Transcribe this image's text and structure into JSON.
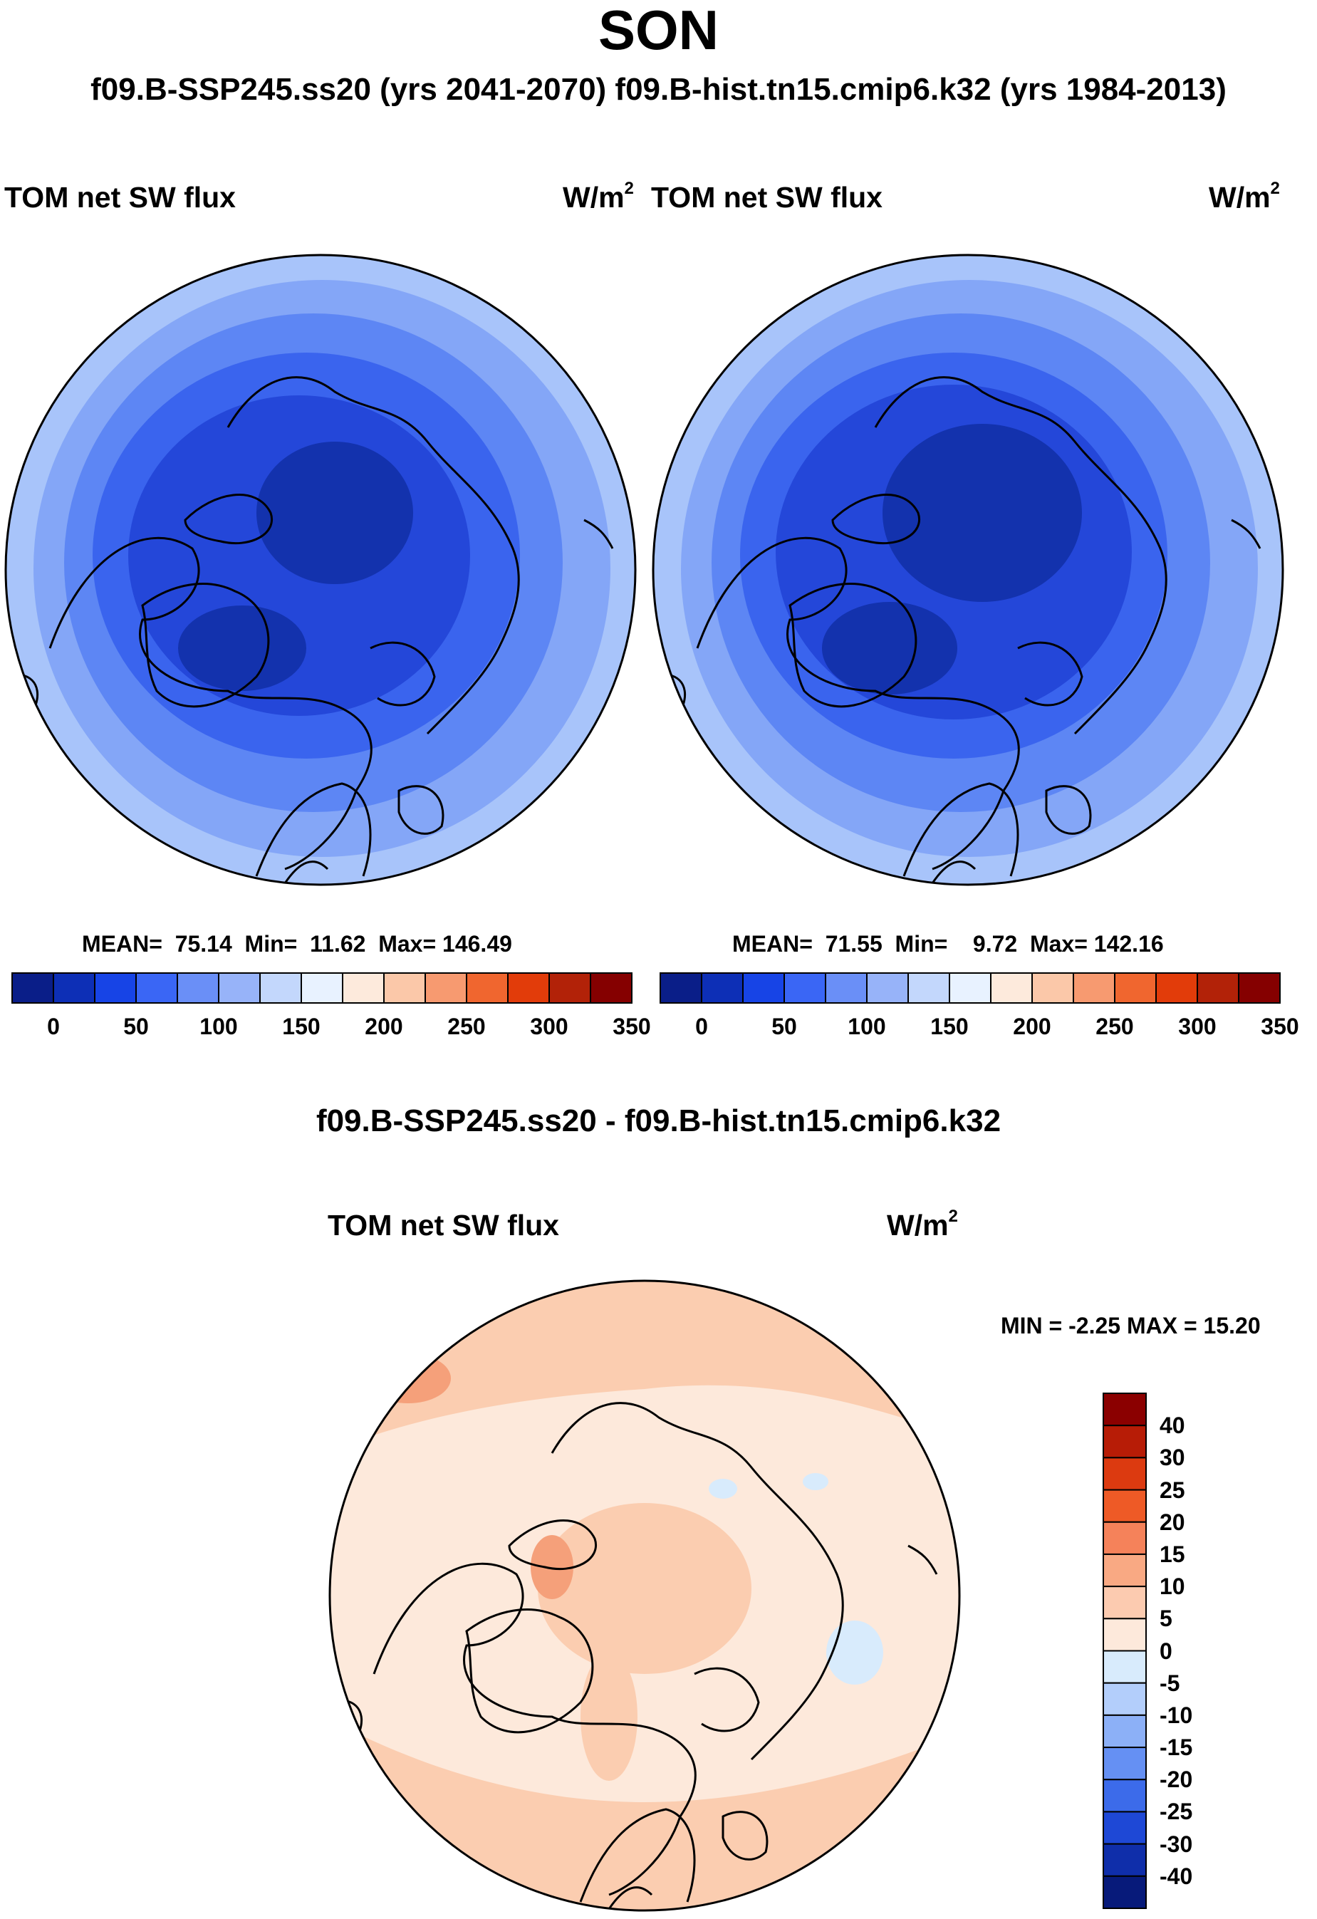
{
  "title": "SON",
  "subtitle": "f09.B-SSP245.ss20 (yrs 2041-2070)  f09.B-hist.tn15.cmip6.k32 (yrs 1984-2013)",
  "chart_data": [
    {
      "type": "heatmap",
      "projection": "polar stereographic (north pole)",
      "variable": "TOM net SW flux",
      "units_base": "W/m",
      "units_exp": "2",
      "stats": {
        "mean": "75.14",
        "min": "11.62",
        "max": "146.49"
      },
      "stats_labels": {
        "mean": "MEAN=",
        "min": "Min=",
        "max": "Max="
      },
      "colorbar_ticks": [
        "0",
        "50",
        "100",
        "150",
        "200",
        "250",
        "300",
        "350"
      ],
      "colorbar_colors": [
        "#0a1e88",
        "#0d2fb6",
        "#1744e6",
        "#3a66f5",
        "#6a8ff7",
        "#97b3f9",
        "#c3d7fc",
        "#e8f2ff",
        "#fdeadc",
        "#fbc8a9",
        "#f79a70",
        "#f0662f",
        "#e23c0a",
        "#b22208",
        "#850000"
      ]
    },
    {
      "type": "heatmap",
      "projection": "polar stereographic (north pole)",
      "variable": "TOM net SW flux",
      "units_base": "W/m",
      "units_exp": "2",
      "stats": {
        "mean": "71.55",
        "min": "9.72",
        "max": "142.16"
      },
      "stats_labels": {
        "mean": "MEAN=",
        "min": "Min=",
        "max": "Max="
      },
      "colorbar_ticks": [
        "0",
        "50",
        "100",
        "150",
        "200",
        "250",
        "300",
        "350"
      ],
      "colorbar_colors": [
        "#0a1e88",
        "#0d2fb6",
        "#1744e6",
        "#3a66f5",
        "#6a8ff7",
        "#97b3f9",
        "#c3d7fc",
        "#e8f2ff",
        "#fdeadc",
        "#fbc8a9",
        "#f79a70",
        "#f0662f",
        "#e23c0a",
        "#b22208",
        "#850000"
      ]
    },
    {
      "type": "heatmap",
      "projection": "polar stereographic (north pole)",
      "title": "f09.B-SSP245.ss20 - f09.B-hist.tn15.cmip6.k32",
      "variable": "TOM net SW flux",
      "units_base": "W/m",
      "units_exp": "2",
      "minmax_text": "MIN =  -2.25 MAX =  15.20",
      "stats": {
        "min": -2.25,
        "max": 15.2
      },
      "colorbar_ticks": [
        "40",
        "30",
        "25",
        "20",
        "15",
        "10",
        "5",
        "0",
        "-5",
        "-10",
        "-15",
        "-20",
        "-25",
        "-30",
        "-40"
      ],
      "colorbar_colors": [
        "#8b0000",
        "#b71c06",
        "#dc3a10",
        "#ee5a26",
        "#f5825a",
        "#f9a983",
        "#fccbb0",
        "#fde9db",
        "#d8ebfc",
        "#b3cefb",
        "#8cb0f7",
        "#6590f3",
        "#3c6bea",
        "#1e48d6",
        "#0f2eaa",
        "#071a7a"
      ]
    }
  ]
}
